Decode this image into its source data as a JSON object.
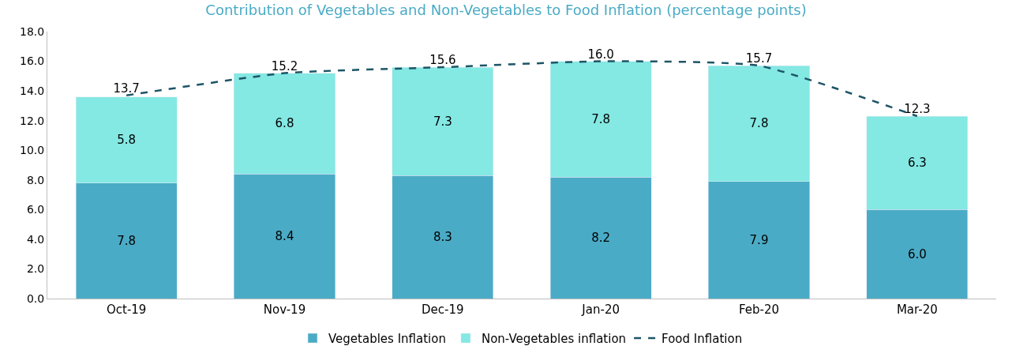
{
  "chart_data": {
    "type": "bar",
    "title": "Contribution of Vegetables and Non-Vegetables to Food Inflation (percentage points)",
    "categories": [
      "Oct-19",
      "Nov-19",
      "Dec-19",
      "Jan-20",
      "Feb-20",
      "Mar-20"
    ],
    "series": [
      {
        "name": "Vegetables Inflation",
        "color": "#4aabc6",
        "values": [
          7.8,
          8.4,
          8.3,
          8.2,
          7.9,
          6.0
        ],
        "value_labels": [
          "7.8",
          "8.4",
          "8.3",
          "8.2",
          "7.9",
          "6.0"
        ]
      },
      {
        "name": "Non-Vegetables inflation",
        "color": "#84e8e3",
        "values": [
          5.8,
          6.8,
          7.3,
          7.8,
          7.8,
          6.3
        ],
        "value_labels": [
          "5.8",
          "6.8",
          "7.3",
          "7.8",
          "7.8",
          "6.3"
        ]
      },
      {
        "name": "Food Inflation",
        "type": "line",
        "color": "#1d5566",
        "line_style": "dashed",
        "values": [
          13.7,
          15.2,
          15.6,
          16.0,
          15.7,
          12.3
        ],
        "value_labels": [
          "13.7",
          "15.2",
          "15.6",
          "16.0",
          "15.7",
          "12.3"
        ]
      }
    ],
    "stacked": true,
    "ylim": [
      0,
      18
    ],
    "yticks": [
      {
        "value": 0,
        "label": "0.0"
      },
      {
        "value": 2,
        "label": "2.0"
      },
      {
        "value": 4,
        "label": "4.0"
      },
      {
        "value": 6,
        "label": "6.0"
      },
      {
        "value": 8,
        "label": "8.0"
      },
      {
        "value": 10,
        "label": "10.0"
      },
      {
        "value": 12,
        "label": "12.0"
      },
      {
        "value": 14,
        "label": "14.0"
      },
      {
        "value": 16,
        "label": "16.0"
      },
      {
        "value": 18,
        "label": "18.0"
      }
    ],
    "legend": "bottom"
  }
}
